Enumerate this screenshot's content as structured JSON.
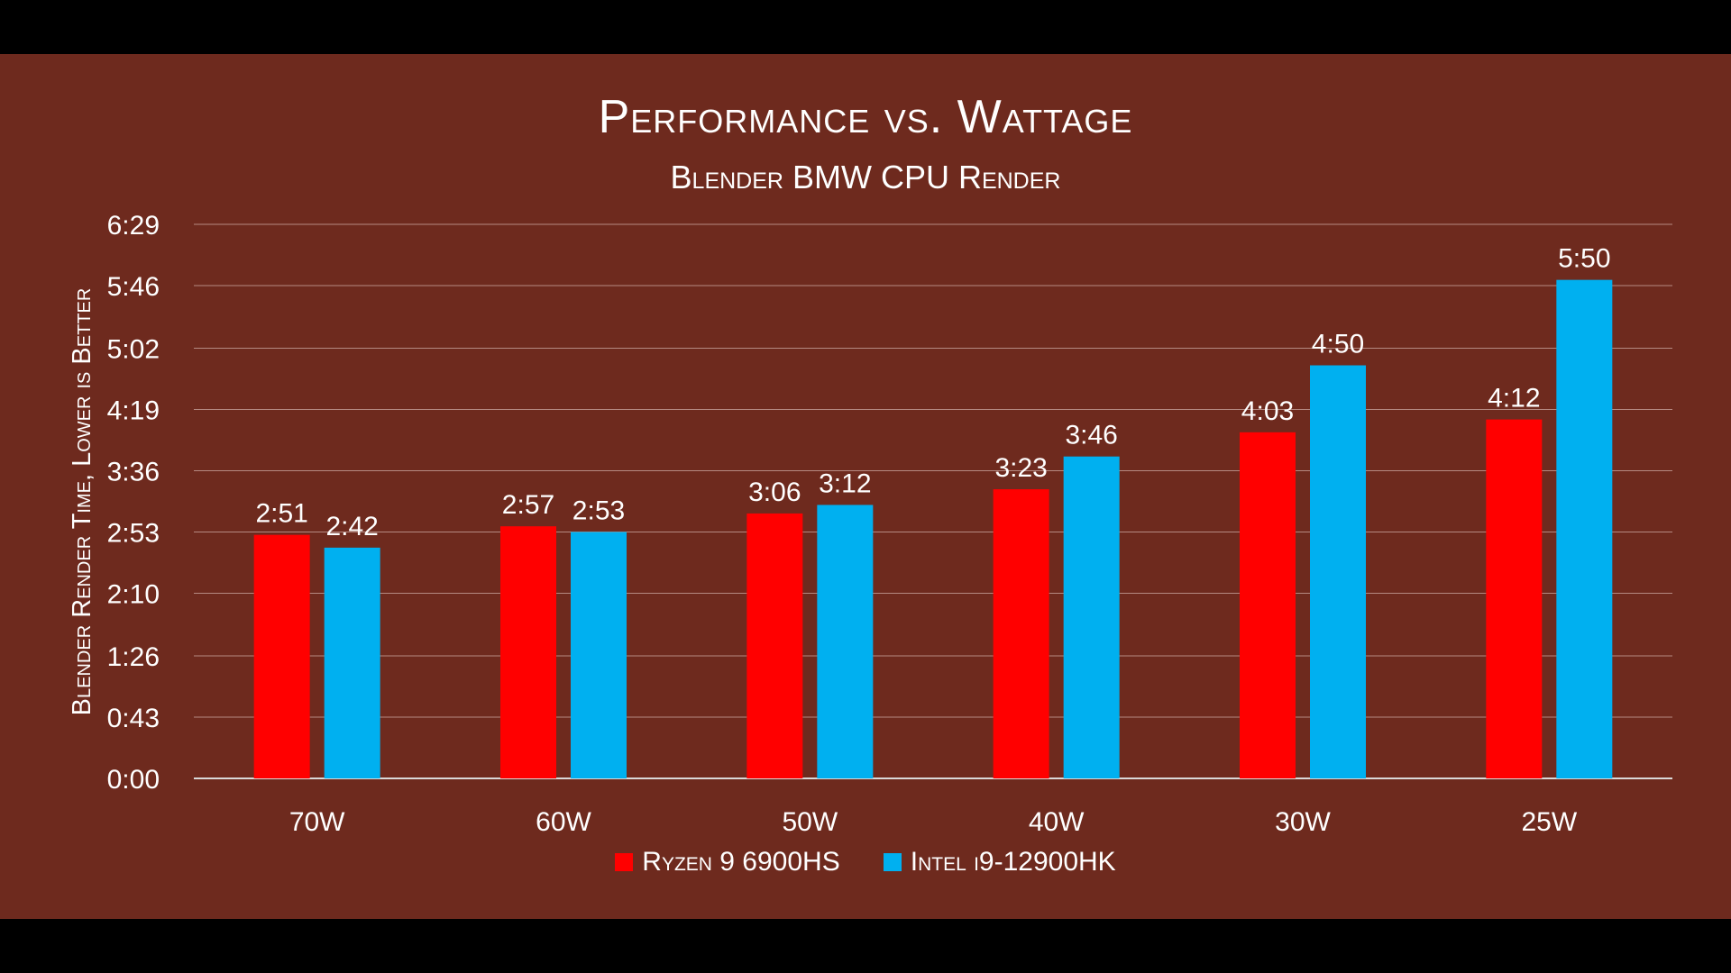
{
  "chart_data": {
    "type": "bar",
    "title": "Performance vs. Wattage",
    "subtitle": "Blender BMW CPU Render",
    "ylabel": "Blender Render Time, Lower is Better",
    "xlabel": "",
    "categories": [
      "70W",
      "60W",
      "50W",
      "40W",
      "30W",
      "25W"
    ],
    "y_ticks": [
      "0:00",
      "0:43",
      "1:26",
      "2:10",
      "2:53",
      "3:36",
      "4:19",
      "5:02",
      "5:46",
      "6:29"
    ],
    "y_tick_values": [
      0,
      43,
      86,
      130,
      173,
      216,
      259,
      302,
      346,
      389
    ],
    "ylim": [
      0,
      389
    ],
    "grid": true,
    "legend_position": "bottom",
    "series": [
      {
        "name": "Ryzen 9 6900HS",
        "color": "#ff0000",
        "values": [
          171,
          177,
          186,
          203,
          243,
          252
        ],
        "labels": [
          "2:51",
          "2:57",
          "3:06",
          "3:23",
          "4:03",
          "4:12"
        ]
      },
      {
        "name": "Intel i9-12900HK",
        "color": "#00b0f0",
        "values": [
          162,
          173,
          192,
          226,
          290,
          350
        ],
        "labels": [
          "2:42",
          "2:53",
          "3:12",
          "3:46",
          "4:50",
          "5:50"
        ]
      }
    ]
  }
}
